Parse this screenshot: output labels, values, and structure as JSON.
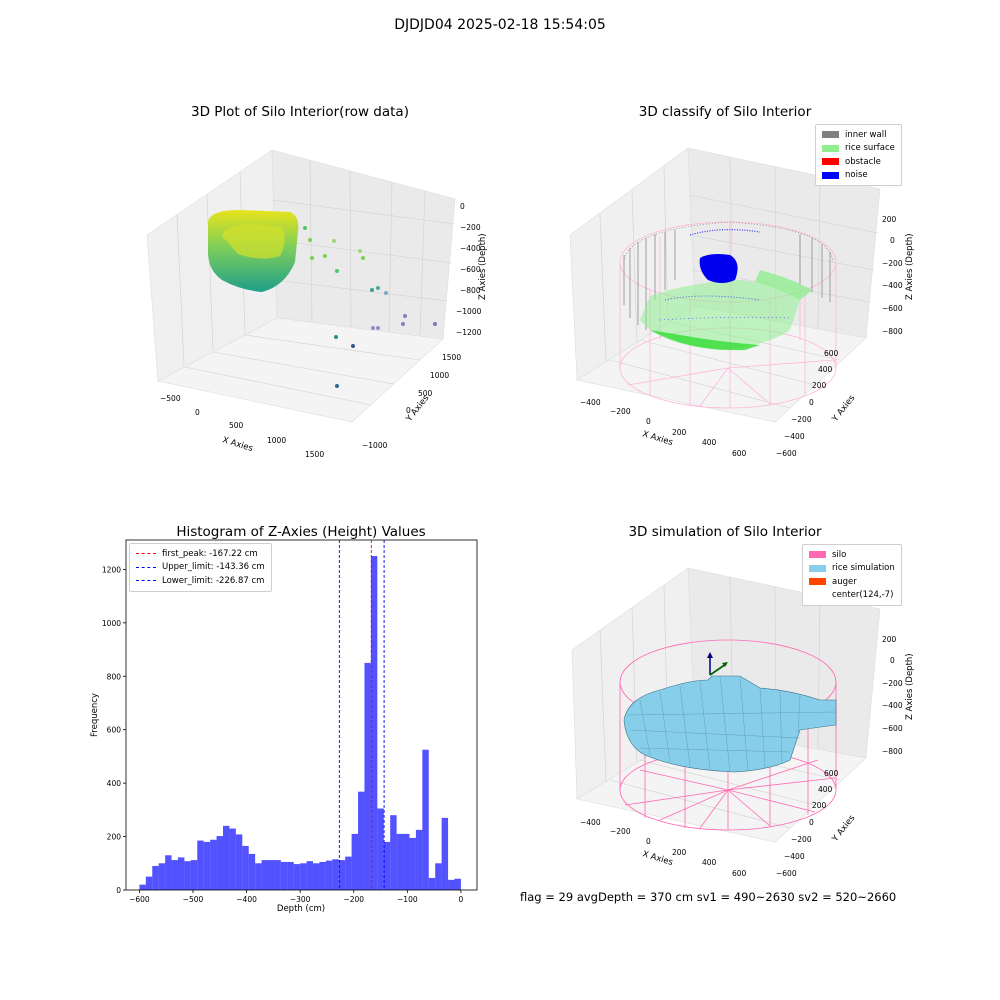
{
  "suptitle": "DJDJD04 2025-02-18 15:54:05",
  "panels": {
    "raw": {
      "title": "3D Plot of Silo Interior(row data)",
      "xlabel": "X Axies",
      "ylabel": "Y Axies",
      "zlabel": "Z Axies (Depth)",
      "xticks": [
        "−500",
        "0",
        "500",
        "1000",
        "1500"
      ],
      "yticks": [
        "−1000",
        "0",
        "500",
        "1000",
        "1500"
      ],
      "zticks": [
        "0",
        "−200",
        "−400",
        "−600",
        "−800",
        "−1000",
        "−1200"
      ]
    },
    "classify": {
      "title": "3D classify of Silo Interior",
      "xlabel": "X Axies",
      "ylabel": "Y Axies",
      "zlabel": "Z Axies (Depth)",
      "xticks": [
        "−400",
        "−200",
        "0",
        "200",
        "400",
        "600"
      ],
      "yticks": [
        "−600",
        "−400",
        "−200",
        "0",
        "200",
        "400",
        "600"
      ],
      "zticks": [
        "200",
        "0",
        "−200",
        "−400",
        "−600",
        "−800"
      ],
      "legend": [
        {
          "label": "inner wall",
          "color": "#808080"
        },
        {
          "label": "rice surface",
          "color": "#90ee90"
        },
        {
          "label": "obstacle",
          "color": "#ff0000"
        },
        {
          "label": "noise",
          "color": "#0000ff"
        }
      ]
    },
    "simulation": {
      "title": "3D simulation of Silo Interior",
      "xlabel": "X Axies",
      "ylabel": "Y Axies",
      "zlabel": "Z Axies (Depth)",
      "xticks": [
        "−400",
        "−200",
        "0",
        "200",
        "400",
        "600"
      ],
      "yticks": [
        "−600",
        "−400",
        "−200",
        "0",
        "200",
        "400",
        "600"
      ],
      "zticks": [
        "200",
        "0",
        "−200",
        "−400",
        "−600",
        "−800"
      ],
      "legend": [
        {
          "label": "silo",
          "color": "#ff69b4"
        },
        {
          "label": "rice simulation",
          "color": "#87ceeb"
        },
        {
          "label": "auger",
          "color": "#ff4500"
        },
        {
          "label": "center(124,-7)",
          "color": "#ffffff"
        }
      ]
    }
  },
  "chart_data": {
    "type": "bar",
    "title": "Histogram of Z-Axies (Height) Values",
    "xlabel": "Depth (cm)",
    "ylabel": "Frequency",
    "xlim": [
      -625,
      30
    ],
    "ylim": [
      0,
      1310
    ],
    "bin_width": 12,
    "xticks": [
      -600,
      -500,
      -400,
      -300,
      -200,
      -100,
      0
    ],
    "xtick_labels": [
      "−600",
      "−500",
      "−400",
      "−300",
      "−200",
      "−100",
      "0"
    ],
    "yticks": [
      0,
      200,
      400,
      600,
      800,
      1000,
      1200
    ],
    "bar_color": "#0000ff",
    "bins": [
      {
        "x0": -600,
        "count": 20
      },
      {
        "x0": -588,
        "count": 50
      },
      {
        "x0": -576,
        "count": 90
      },
      {
        "x0": -564,
        "count": 100
      },
      {
        "x0": -552,
        "count": 130
      },
      {
        "x0": -540,
        "count": 112
      },
      {
        "x0": -528,
        "count": 122
      },
      {
        "x0": -516,
        "count": 108
      },
      {
        "x0": -504,
        "count": 112
      },
      {
        "x0": -492,
        "count": 185
      },
      {
        "x0": -480,
        "count": 180
      },
      {
        "x0": -468,
        "count": 188
      },
      {
        "x0": -456,
        "count": 202
      },
      {
        "x0": -444,
        "count": 240
      },
      {
        "x0": -432,
        "count": 230
      },
      {
        "x0": -420,
        "count": 208
      },
      {
        "x0": -408,
        "count": 165
      },
      {
        "x0": -396,
        "count": 135
      },
      {
        "x0": -384,
        "count": 100
      },
      {
        "x0": -372,
        "count": 112
      },
      {
        "x0": -360,
        "count": 112
      },
      {
        "x0": -348,
        "count": 112
      },
      {
        "x0": -336,
        "count": 105
      },
      {
        "x0": -324,
        "count": 105
      },
      {
        "x0": -312,
        "count": 97
      },
      {
        "x0": -300,
        "count": 100
      },
      {
        "x0": -288,
        "count": 108
      },
      {
        "x0": -276,
        "count": 100
      },
      {
        "x0": -264,
        "count": 105
      },
      {
        "x0": -252,
        "count": 110
      },
      {
        "x0": -240,
        "count": 115
      },
      {
        "x0": -228,
        "count": 112
      },
      {
        "x0": -216,
        "count": 125
      },
      {
        "x0": -204,
        "count": 210
      },
      {
        "x0": -192,
        "count": 368
      },
      {
        "x0": -180,
        "count": 850
      },
      {
        "x0": -168,
        "count": 1250
      },
      {
        "x0": -156,
        "count": 305
      },
      {
        "x0": -144,
        "count": 180
      },
      {
        "x0": -132,
        "count": 280
      },
      {
        "x0": -120,
        "count": 210
      },
      {
        "x0": -108,
        "count": 210
      },
      {
        "x0": -96,
        "count": 195
      },
      {
        "x0": -84,
        "count": 225
      },
      {
        "x0": -72,
        "count": 525
      },
      {
        "x0": -60,
        "count": 45
      },
      {
        "x0": -48,
        "count": 100
      },
      {
        "x0": -36,
        "count": 270
      },
      {
        "x0": -24,
        "count": 38
      },
      {
        "x0": -12,
        "count": 42
      }
    ],
    "vlines": [
      {
        "label": "first_peak: -167.22 cm",
        "x": -167.22,
        "color": "#ff0000"
      },
      {
        "label": "Upper_limit: -143.36 cm",
        "x": -143.36,
        "color": "#0000ff"
      },
      {
        "label": "Lower_limit: -226.87 cm",
        "x": -226.87,
        "color": "#0000ff"
      }
    ],
    "legend_position": "upper-left"
  },
  "footer": "flag = 29  avgDepth = 370 cm  sv1 = 490~2630  sv2 = 520~2660"
}
